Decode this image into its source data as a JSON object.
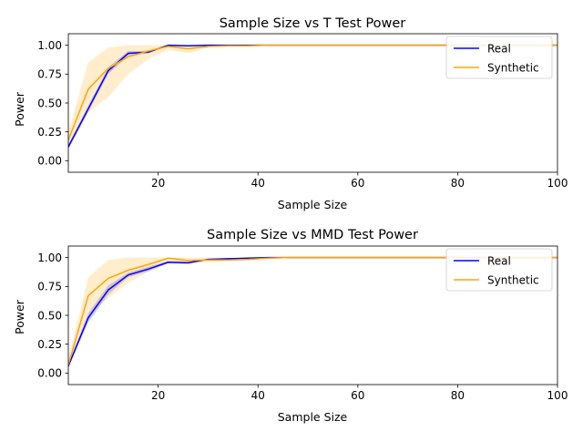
{
  "colors": {
    "real": "#0000ff",
    "synthetic": "#ffa500",
    "axis": "#000000",
    "background": "#ffffff"
  },
  "chart_data": [
    {
      "type": "line",
      "title": "Sample Size vs T Test Power",
      "xlabel": "Sample Size",
      "ylabel": "Power",
      "xlim": [
        2,
        100
      ],
      "ylim": [
        -0.1,
        1.1
      ],
      "xticks": [
        20,
        40,
        60,
        80,
        100
      ],
      "yticks": [
        "0.00",
        "0.25",
        "0.50",
        "0.75",
        "1.00"
      ],
      "grid": false,
      "legend": "upper-right",
      "series": [
        {
          "name": "Real",
          "color": "#0000ff",
          "x": [
            2,
            6,
            10,
            14,
            18,
            22,
            26,
            30,
            34,
            38,
            42,
            46,
            50,
            60,
            70,
            80,
            90,
            100
          ],
          "values": [
            0.12,
            0.45,
            0.78,
            0.93,
            0.94,
            1.0,
            0.995,
            1.0,
            1.0,
            1.0,
            1.0,
            1.0,
            1.0,
            1.0,
            1.0,
            1.0,
            1.0,
            1.0
          ],
          "lower": [
            0.1,
            0.42,
            0.75,
            0.91,
            0.93,
            0.995,
            0.99,
            0.998,
            1.0,
            1.0,
            1.0,
            1.0,
            1.0,
            1.0,
            1.0,
            1.0,
            1.0,
            1.0
          ],
          "upper": [
            0.14,
            0.48,
            0.81,
            0.95,
            0.95,
            1.0,
            1.0,
            1.0,
            1.0,
            1.0,
            1.0,
            1.0,
            1.0,
            1.0,
            1.0,
            1.0,
            1.0,
            1.0
          ]
        },
        {
          "name": "Synthetic",
          "color": "#ffa500",
          "x": [
            2,
            6,
            10,
            14,
            18,
            22,
            26,
            30,
            34,
            38,
            42,
            46,
            50,
            60,
            70,
            80,
            90,
            100
          ],
          "values": [
            0.18,
            0.62,
            0.8,
            0.9,
            0.95,
            0.99,
            0.97,
            0.99,
            0.995,
            0.995,
            1.0,
            1.0,
            1.0,
            1.0,
            1.0,
            1.0,
            1.0,
            1.0
          ],
          "lower": [
            0.12,
            0.42,
            0.55,
            0.75,
            0.88,
            0.96,
            0.93,
            0.98,
            0.99,
            0.99,
            0.995,
            1.0,
            1.0,
            1.0,
            1.0,
            1.0,
            1.0,
            1.0
          ],
          "upper": [
            0.25,
            0.85,
            0.98,
            1.0,
            1.0,
            1.0,
            1.0,
            1.0,
            1.0,
            1.0,
            1.0,
            1.0,
            1.0,
            1.0,
            1.0,
            1.0,
            1.0,
            1.0
          ]
        }
      ]
    },
    {
      "type": "line",
      "title": "Sample Size vs MMD Test Power",
      "xlabel": "Sample Size",
      "ylabel": "Power",
      "xlim": [
        2,
        100
      ],
      "ylim": [
        -0.1,
        1.1
      ],
      "xticks": [
        20,
        40,
        60,
        80,
        100
      ],
      "yticks": [
        "0.00",
        "0.25",
        "0.50",
        "0.75",
        "1.00"
      ],
      "grid": false,
      "legend": "upper-right",
      "series": [
        {
          "name": "Real",
          "color": "#0000ff",
          "x": [
            2,
            6,
            10,
            14,
            18,
            22,
            26,
            30,
            34,
            38,
            42,
            46,
            50,
            60,
            70,
            80,
            90,
            100
          ],
          "values": [
            0.06,
            0.48,
            0.72,
            0.85,
            0.9,
            0.96,
            0.955,
            0.985,
            0.99,
            0.995,
            1.0,
            1.0,
            1.0,
            1.0,
            1.0,
            1.0,
            1.0,
            1.0
          ],
          "lower": [
            0.05,
            0.44,
            0.68,
            0.83,
            0.88,
            0.95,
            0.945,
            0.98,
            0.985,
            0.99,
            1.0,
            1.0,
            1.0,
            1.0,
            1.0,
            1.0,
            1.0,
            1.0
          ],
          "upper": [
            0.08,
            0.52,
            0.76,
            0.87,
            0.92,
            0.97,
            0.965,
            0.99,
            0.995,
            1.0,
            1.0,
            1.0,
            1.0,
            1.0,
            1.0,
            1.0,
            1.0,
            1.0
          ]
        },
        {
          "name": "Synthetic",
          "color": "#ffa500",
          "x": [
            2,
            6,
            10,
            14,
            18,
            22,
            26,
            30,
            34,
            38,
            42,
            46,
            50,
            60,
            70,
            80,
            90,
            100
          ],
          "values": [
            0.07,
            0.67,
            0.82,
            0.89,
            0.94,
            0.995,
            0.975,
            0.98,
            0.98,
            0.985,
            0.995,
            1.0,
            1.0,
            1.0,
            1.0,
            1.0,
            1.0,
            1.0
          ],
          "lower": [
            0.04,
            0.5,
            0.65,
            0.78,
            0.88,
            0.97,
            0.95,
            0.96,
            0.97,
            0.975,
            0.99,
            1.0,
            1.0,
            1.0,
            1.0,
            1.0,
            1.0,
            1.0
          ],
          "upper": [
            0.12,
            0.83,
            0.98,
            1.0,
            1.0,
            1.0,
            1.0,
            1.0,
            1.0,
            1.0,
            1.0,
            1.0,
            1.0,
            1.0,
            1.0,
            1.0,
            1.0,
            1.0
          ]
        }
      ]
    }
  ]
}
